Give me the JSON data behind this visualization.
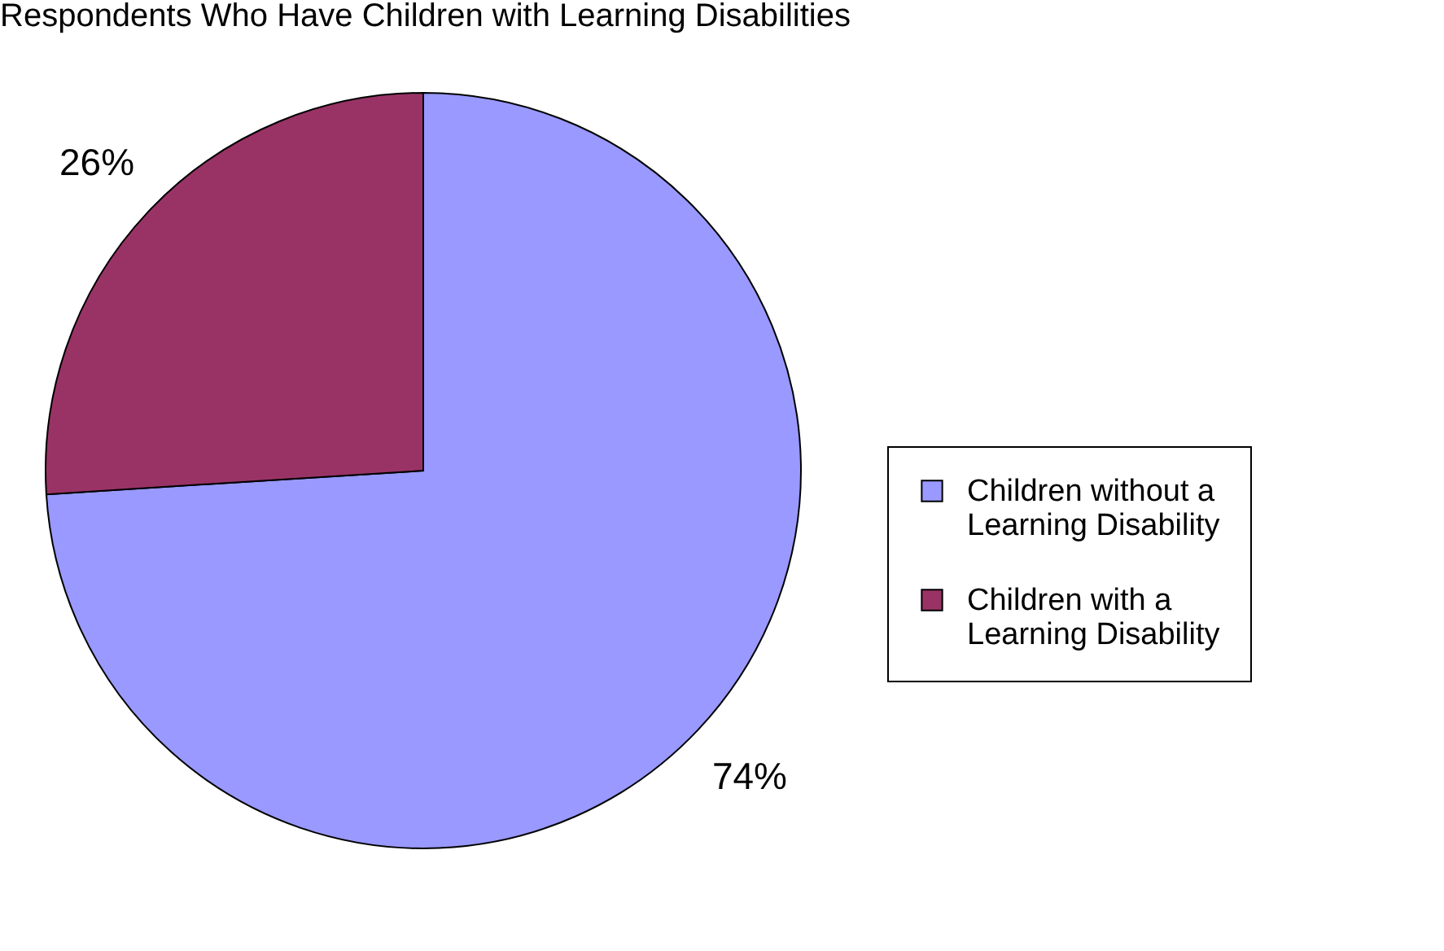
{
  "chart_data": {
    "type": "pie",
    "title": "Respondents Who Have Children with Learning Disabilities",
    "categories": [
      "Children without a Learning Disability",
      "Children with a Learning Disability"
    ],
    "values": [
      74,
      26
    ],
    "value_labels": [
      "74%",
      "26%"
    ],
    "colors": [
      "#9999ff",
      "#993366"
    ],
    "legend": "right"
  }
}
